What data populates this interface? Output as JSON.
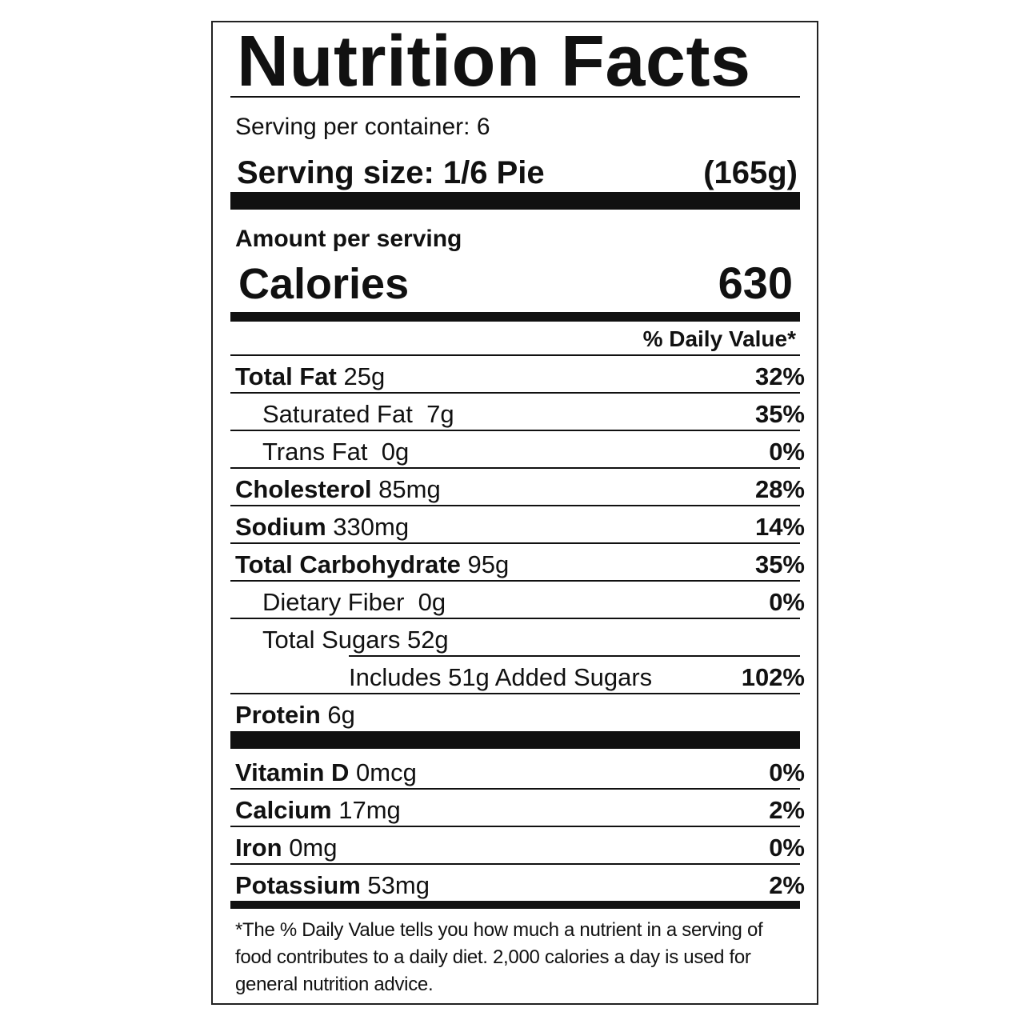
{
  "title": "Nutrition Facts",
  "servings_per_container": "Serving per container: 6",
  "serving_size_label": "Serving size: 1/6 Pie",
  "serving_size_grams": "(165g)",
  "amount_per_serving": "Amount per serving",
  "calories_label": "Calories",
  "calories_value": "630",
  "daily_value_header": "% Daily Value*",
  "nutrients": [
    {
      "name": "Total Fat",
      "amount": "25g",
      "dv": "32%"
    },
    {
      "name": "Saturated Fat",
      "amount": "7g",
      "dv": "35%"
    },
    {
      "name": "Trans Fat",
      "amount": "0g",
      "dv": "0%"
    },
    {
      "name": "Cholesterol",
      "amount": "85mg",
      "dv": "28%"
    },
    {
      "name": "Sodium",
      "amount": "330mg",
      "dv": "14%"
    },
    {
      "name": "Total Carbohydrate",
      "amount": "95g",
      "dv": "35%"
    },
    {
      "name": "Dietary Fiber",
      "amount": "0g",
      "dv": "0%"
    },
    {
      "name": "Total Sugars",
      "amount": "52g",
      "dv": ""
    },
    {
      "name": "Includes 51g Added Sugars",
      "amount": "",
      "dv": "102%"
    },
    {
      "name": "Protein",
      "amount": "6g",
      "dv": ""
    }
  ],
  "vitamins": [
    {
      "name": "Vitamin D",
      "amount": "0mcg",
      "dv": "0%"
    },
    {
      "name": "Calcium",
      "amount": "17mg",
      "dv": "2%"
    },
    {
      "name": "Iron",
      "amount": "0mg",
      "dv": "0%"
    },
    {
      "name": "Potassium",
      "amount": "53mg",
      "dv": "2%"
    }
  ],
  "footnote": "*The % Daily Value tells you how much a nutrient in a serving of food contributes to a daily diet. 2,000 calories a day is used for general nutrition advice."
}
